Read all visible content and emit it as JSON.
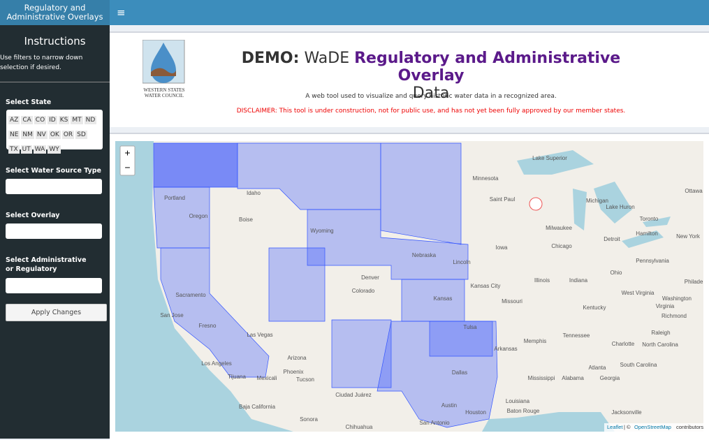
{
  "sidebar": {
    "brand": "Regulatory and Administrative Overlays",
    "heading": "Instructions",
    "instructions": "Use filters to narrow down selection if desired.",
    "state_label": "Select State",
    "states": [
      "AZ",
      "CA",
      "CO",
      "ID",
      "KS",
      "MT",
      "ND",
      "NE",
      "NM",
      "NV",
      "OK",
      "OR",
      "SD",
      "TX",
      "UT",
      "WA",
      "WY"
    ],
    "water_source_label": "Select Water Source Type",
    "overlay_label": "Select Overlay",
    "admin_label": "Select Administrative or Regulatory",
    "apply_button": "Apply Changes"
  },
  "topbar": {
    "menu_icon": "≡"
  },
  "header": {
    "logo_text": "WESTERN STATES WATER COUNCIL",
    "demo": "DEMO:",
    "wade": "WaDE",
    "title_emph": "Regulatory and Administrative Overlay",
    "title_tail": "Data",
    "subtitle": "A web tool used to visualize and query historic water data in a recognized area.",
    "disclaimer": "DISCLAIMER: This tool is under construction, not for public use, and has not yet been fully approved by our member states."
  },
  "map": {
    "zoom_in": "+",
    "zoom_out": "−",
    "attribution": {
      "leaflet": "Leaflet",
      "separator": "| ©",
      "osm": "OpenStreetMap",
      "contributors": "contributors"
    },
    "labels": [
      "Portland",
      "Boise",
      "Idaho",
      "Oregon",
      "Wyoming",
      "Denver",
      "Colorado",
      "Sacramento",
      "San Jose",
      "Fresno",
      "Las Vegas",
      "Los Angeles",
      "Tijuana",
      "Mexicali",
      "Phoenix",
      "Tucson",
      "Arizona",
      "Ciudad Juárez",
      "Dallas",
      "Austin",
      "Houston",
      "San Antonio",
      "Tulsa",
      "Kansas City",
      "Lincoln",
      "Nebraska",
      "Saint Paul",
      "Minnesota",
      "Milwaukee",
      "Chicago",
      "Detroit",
      "Toronto",
      "Hamilton",
      "Ottawa",
      "Iowa",
      "Illinois",
      "Indiana",
      "Ohio",
      "Missouri",
      "Memphis",
      "Arkansas",
      "Tennessee",
      "Kentucky",
      "Charlotte",
      "Raleigh",
      "Richmond",
      "Washington",
      "Virginia",
      "West Virginia",
      "Atlanta",
      "Georgia",
      "Mississippi",
      "Alabama",
      "Louisiana",
      "Baton Rouge",
      "Jacksonville",
      "Philadel",
      "Pennsylvania",
      "North Carolina",
      "South Carolina",
      "Lake Superior",
      "Michigan",
      "New York",
      "Baja California",
      "Sonora",
      "Chihuahua",
      "Kansas",
      "Lake Huron"
    ]
  }
}
